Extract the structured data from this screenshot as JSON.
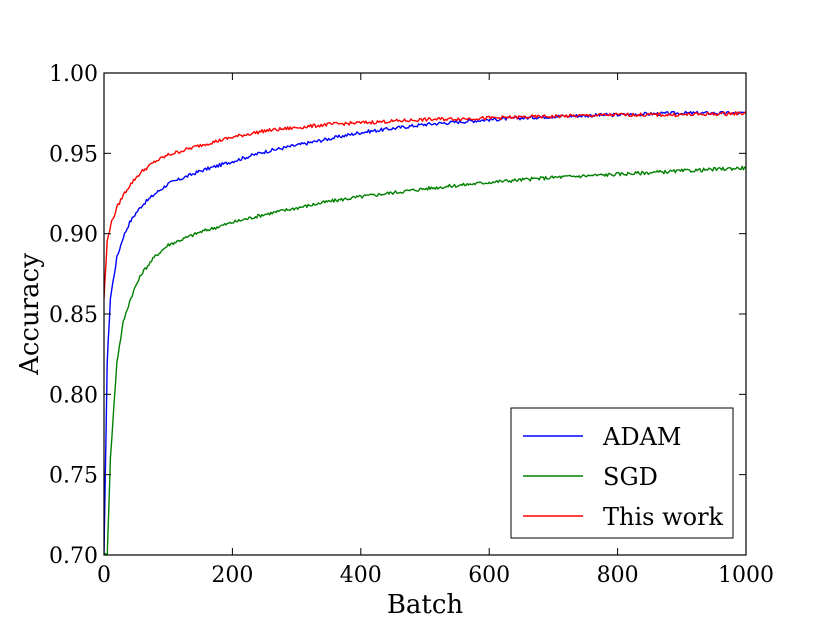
{
  "chart_data": {
    "type": "line",
    "title": "",
    "xlabel": "Batch",
    "ylabel": "Accuracy",
    "xlim": [
      0,
      1000
    ],
    "ylim": [
      0.7,
      1.0
    ],
    "xticks": [
      0,
      200,
      400,
      600,
      800,
      1000
    ],
    "xtick_labels": [
      "0",
      "200",
      "400",
      "600",
      "800",
      "1000"
    ],
    "yticks": [
      0.7,
      0.75,
      0.8,
      0.85,
      0.9,
      0.95,
      1.0
    ],
    "ytick_labels": [
      "0.70",
      "0.75",
      "0.80",
      "0.85",
      "0.90",
      "0.95",
      "1.00"
    ],
    "grid": false,
    "legend_position": "bottom-right",
    "x": [
      0,
      5,
      10,
      20,
      30,
      40,
      50,
      60,
      80,
      100,
      150,
      200,
      250,
      300,
      350,
      400,
      500,
      600,
      700,
      800,
      900,
      1000
    ],
    "series": [
      {
        "name": "ADAM",
        "color": "#0000ff",
        "values": [
          0.7,
          0.82,
          0.86,
          0.885,
          0.898,
          0.907,
          0.913,
          0.918,
          0.925,
          0.931,
          0.939,
          0.945,
          0.951,
          0.955,
          0.959,
          0.963,
          0.968,
          0.971,
          0.973,
          0.974,
          0.975,
          0.975
        ]
      },
      {
        "name": "SGD",
        "color": "#008000",
        "values": [
          0.7,
          0.7,
          0.76,
          0.82,
          0.845,
          0.858,
          0.868,
          0.876,
          0.886,
          0.893,
          0.901,
          0.907,
          0.912,
          0.916,
          0.92,
          0.923,
          0.928,
          0.932,
          0.935,
          0.937,
          0.939,
          0.941
        ]
      },
      {
        "name": "This work",
        "color": "#ff0000",
        "values": [
          0.86,
          0.895,
          0.905,
          0.916,
          0.924,
          0.93,
          0.935,
          0.939,
          0.945,
          0.949,
          0.955,
          0.96,
          0.964,
          0.966,
          0.968,
          0.969,
          0.971,
          0.972,
          0.973,
          0.974,
          0.974,
          0.975
        ]
      }
    ]
  }
}
